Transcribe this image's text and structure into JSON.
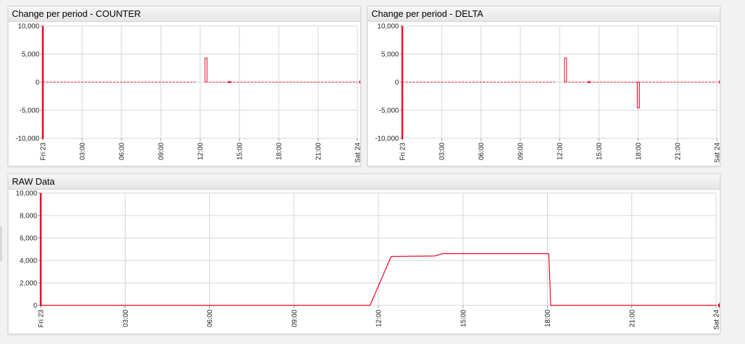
{
  "colors": {
    "series": "#ee0022",
    "badge": "#ee0022"
  },
  "chart_data": [
    {
      "id": "counter",
      "title": "Change per period - COUNTER",
      "type": "bar",
      "ylim": [
        -10000,
        10000
      ],
      "yticks": [
        10000,
        5000,
        0,
        -5000,
        -10000
      ],
      "ytick_labels": [
        "10,000",
        "5,000",
        "0",
        "-5,000",
        "-10,000"
      ],
      "xlim": [
        0,
        24
      ],
      "xticks": [
        0,
        3,
        6,
        9,
        12,
        15,
        18,
        21,
        24
      ],
      "xtick_labels": [
        "Fri 23",
        "03:00",
        "06:00",
        "09:00",
        "12:00",
        "15:00",
        "18:00",
        "21:00",
        "Sat 24"
      ],
      "baseline_segments": [
        [
          0,
          11.65
        ],
        [
          12.4,
          24
        ]
      ],
      "bars": [
        {
          "x": 12.45,
          "value": 4300
        },
        {
          "x": 14.25,
          "value": 100
        }
      ],
      "last_value": "0"
    },
    {
      "id": "delta",
      "title": "Change per period - DELTA",
      "type": "bar",
      "ylim": [
        -10000,
        10000
      ],
      "yticks": [
        10000,
        5000,
        0,
        -5000,
        -10000
      ],
      "ytick_labels": [
        "10,000",
        "5,000",
        "0",
        "-5,000",
        "-10,000"
      ],
      "xlim": [
        0,
        24
      ],
      "xticks": [
        0,
        3,
        6,
        9,
        12,
        15,
        18,
        21,
        24
      ],
      "xtick_labels": [
        "Fri 23",
        "03:00",
        "06:00",
        "09:00",
        "12:00",
        "15:00",
        "18:00",
        "21:00",
        "Sat 24"
      ],
      "baseline_segments": [
        [
          0,
          11.65
        ],
        [
          12.4,
          24
        ]
      ],
      "bars": [
        {
          "x": 12.45,
          "value": 4300
        },
        {
          "x": 14.25,
          "value": 100
        },
        {
          "x": 18.0,
          "value": -4600
        }
      ],
      "last_value": "0"
    },
    {
      "id": "raw",
      "title": "RAW Data",
      "type": "line",
      "ylim": [
        0,
        10000
      ],
      "yticks": [
        10000,
        8000,
        6000,
        4000,
        2000,
        0
      ],
      "ytick_labels": [
        "10,000",
        "8,000",
        "6,000",
        "4,000",
        "2,000",
        "0"
      ],
      "xlim": [
        0,
        24
      ],
      "xticks": [
        0,
        3,
        6,
        9,
        12,
        15,
        18,
        21,
        24
      ],
      "xtick_labels": [
        "Fri 23",
        "03:00",
        "06:00",
        "09:00",
        "12:00",
        "15:00",
        "18:00",
        "21:00",
        "Sat 24"
      ],
      "points": [
        [
          0,
          0
        ],
        [
          11.7,
          0
        ],
        [
          12.45,
          4350
        ],
        [
          14.0,
          4400
        ],
        [
          14.2,
          4550
        ],
        [
          14.3,
          4600
        ],
        [
          18.05,
          4600
        ],
        [
          18.12,
          0
        ],
        [
          24,
          0
        ]
      ],
      "last_value": "4"
    }
  ]
}
